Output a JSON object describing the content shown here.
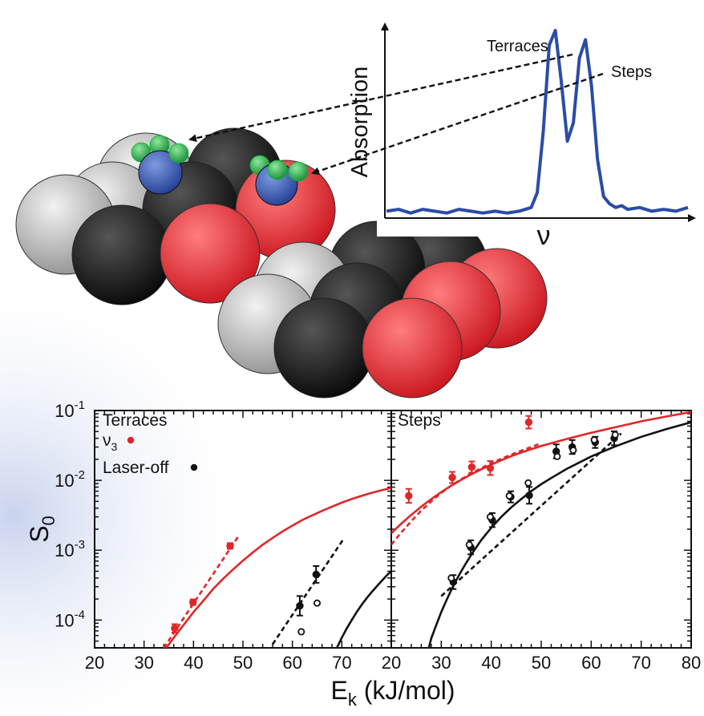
{
  "colors": {
    "red": "#e02727",
    "black": "#111111",
    "blue": "#2a4ca8",
    "gray": "#b8b8b8",
    "sphere_red": "#e8282e",
    "adsorbate_blue": "#3652a8",
    "adsorbate_green": "#2faa4a"
  },
  "inset": {
    "ylabel": "Absorption",
    "xlabel": "ν",
    "peak_labels": [
      "Terraces",
      "Steps"
    ],
    "spectrum": {
      "type": "line",
      "x": [
        0,
        4,
        8,
        12,
        16,
        20,
        24,
        28,
        32,
        36,
        40,
        44,
        48,
        50,
        52,
        54,
        56,
        58,
        60,
        62,
        64,
        66,
        68,
        70,
        72,
        74,
        76,
        78,
        80,
        84,
        88,
        92,
        96,
        100
      ],
      "y": [
        0.02,
        0.03,
        0.01,
        0.03,
        0.02,
        0.01,
        0.03,
        0.02,
        0.01,
        0.02,
        0.01,
        0.02,
        0.04,
        0.12,
        0.45,
        0.92,
        1.0,
        0.72,
        0.4,
        0.5,
        0.85,
        0.95,
        0.7,
        0.3,
        0.1,
        0.06,
        0.04,
        0.05,
        0.03,
        0.04,
        0.02,
        0.03,
        0.02,
        0.04
      ],
      "color": "blue"
    }
  },
  "chart_data": {
    "type": "scatter",
    "ylabel": "S",
    "ylabel_sub": "0",
    "xlabel": "E",
    "xlabel_sub": "k",
    "xlabel_units": " (kJ/mol)",
    "y_scale": "log",
    "ylim": [
      4e-05,
      0.1
    ],
    "ytick_labels": [
      {
        "value": 0.1,
        "base": "10",
        "exp": "-1"
      },
      {
        "value": 0.01,
        "base": "10",
        "exp": "-2"
      },
      {
        "value": 0.001,
        "base": "10",
        "exp": "-3"
      },
      {
        "value": 0.0001,
        "base": "10",
        "exp": "-4"
      }
    ],
    "panels": [
      {
        "title": "Terraces",
        "xlim": [
          20,
          80
        ],
        "xticks": [
          "20",
          "30",
          "40",
          "50",
          "60",
          "70"
        ],
        "xtick_values": [
          20,
          30,
          40,
          50,
          60,
          70
        ],
        "legend": [
          {
            "label_base": "ν",
            "label_sub": "3",
            "color": "red"
          },
          {
            "label_base": "Laser-off",
            "label_sub": "",
            "color": "black"
          }
        ],
        "series": [
          {
            "color": "red",
            "marker": "filled",
            "x": [
              36.2,
              39.9,
              47.4
            ],
            "y": [
              7.6e-05,
              0.00018,
              0.00115
            ],
            "err": [
              0.06,
              0.04,
              0.04
            ]
          },
          {
            "color": "black",
            "marker": "filled",
            "x": [
              61.5,
              64.8
            ],
            "y": [
              0.00016,
              0.00045
            ],
            "err": [
              0.14,
              0.12
            ]
          },
          {
            "color": "black",
            "marker": "open",
            "x": [
              61.8,
              65.0
            ],
            "y": [
              6.8e-05,
              0.000175
            ],
            "err": [
              0,
              0
            ]
          }
        ],
        "lines": [
          {
            "color": "red",
            "style": "solid",
            "x": [
              34.5,
              36,
              38,
              40,
              42,
              44,
              46,
              48,
              50,
              52,
              54,
              56,
              58,
              60,
              62,
              64,
              66,
              68,
              70,
              72,
              74,
              76,
              78,
              80
            ],
            "y": [
              4e-05,
              5.6e-05,
              8.5e-05,
              0.00013,
              0.00019,
              0.00028,
              0.00039,
              0.00053,
              0.00071,
              0.00093,
              0.0012,
              0.0015,
              0.00185,
              0.00225,
              0.0027,
              0.00315,
              0.00365,
              0.0042,
              0.0048,
              0.0054,
              0.006,
              0.0066,
              0.0072,
              0.0078
            ]
          },
          {
            "color": "red",
            "style": "dashed",
            "x": [
              34,
              49
            ],
            "y": [
              4e-05,
              0.00155
            ]
          },
          {
            "color": "black",
            "style": "dashed",
            "x": [
              56,
              70.5
            ],
            "y": [
              4.5e-05,
              0.0015
            ]
          },
          {
            "color": "black",
            "style": "solid",
            "x": [
              69,
              70,
              71,
              72,
              73,
              74,
              75,
              76,
              77,
              78,
              79,
              80
            ],
            "y": [
              4e-05,
              5.6e-05,
              7.6e-05,
              0.0001,
              0.00013,
              0.000165,
              0.000205,
              0.00025,
              0.0003,
              0.00036,
              0.00043,
              0.0005
            ]
          }
        ]
      },
      {
        "title": "Steps",
        "xlim": [
          20,
          80
        ],
        "xticks": [
          "20",
          "30",
          "40",
          "50",
          "60",
          "70",
          "80"
        ],
        "xtick_values": [
          20,
          30,
          40,
          50,
          60,
          70,
          80
        ],
        "legend": [],
        "series": [
          {
            "color": "red",
            "marker": "filled",
            "x": [
              23.5,
              32.2,
              36.1,
              39.8,
              47.5
            ],
            "y": [
              0.006,
              0.011,
              0.0155,
              0.015,
              0.068
            ],
            "err": [
              0.1,
              0.08,
              0.08,
              0.1,
              0.09
            ]
          },
          {
            "color": "black",
            "marker": "filled",
            "x": [
              32.4,
              35.9,
              40.2,
              43.9,
              47.6,
              53.0,
              56.2,
              60.8,
              64.6
            ],
            "y": [
              0.00035,
              0.0011,
              0.0027,
              0.0058,
              0.0061,
              0.026,
              0.03,
              0.035,
              0.04
            ],
            "err": [
              0.1,
              0.1,
              0.1,
              0.08,
              0.12,
              0.1,
              0.1,
              0.08,
              0.1
            ]
          },
          {
            "color": "black",
            "marker": "open",
            "x": [
              32.0,
              35.6,
              39.8,
              43.6,
              47.4,
              53.2,
              56.4,
              60.6,
              64.8
            ],
            "y": [
              0.0004,
              0.0012,
              0.003,
              0.006,
              0.0092,
              0.022,
              0.027,
              0.038,
              0.045
            ],
            "err": [
              0,
              0,
              0,
              0,
              0,
              0,
              0,
              0,
              0
            ]
          }
        ],
        "lines": [
          {
            "color": "red",
            "style": "solid",
            "x": [
              20,
              22,
              24,
              26,
              28,
              30,
              32,
              34,
              36,
              38,
              40,
              42,
              44,
              46,
              48,
              50,
              55,
              60,
              65,
              70,
              75,
              80
            ],
            "y": [
              0.00175,
              0.0024,
              0.0032,
              0.0042,
              0.0054,
              0.0068,
              0.0084,
              0.0102,
              0.0122,
              0.0144,
              0.0168,
              0.0194,
              0.0222,
              0.025,
              0.028,
              0.031,
              0.039,
              0.048,
              0.058,
              0.07,
              0.082,
              0.095
            ]
          },
          {
            "color": "red",
            "style": "dashed",
            "x": [
              20,
              22,
              24,
              26,
              28,
              30,
              32,
              34,
              36,
              38,
              40,
              42,
              44,
              46,
              48,
              50
            ],
            "y": [
              0.0012,
              0.0018,
              0.0026,
              0.0037,
              0.005,
              0.0066,
              0.0084,
              0.0104,
              0.0126,
              0.015,
              0.0176,
              0.0204,
              0.0234,
              0.0266,
              0.03,
              0.034
            ]
          },
          {
            "color": "black",
            "style": "solid",
            "x": [
              27.5,
              28,
              29,
              30,
              31,
              32,
              33,
              34,
              35,
              36,
              38,
              40,
              42,
              44,
              46,
              48,
              50,
              52,
              55,
              60,
              65,
              70,
              75,
              80
            ],
            "y": [
              4e-05,
              5.5e-05,
              8.5e-05,
              0.00013,
              0.00019,
              0.00027,
              0.00037,
              0.0005,
              0.00066,
              0.00086,
              0.0014,
              0.0021,
              0.003,
              0.0041,
              0.0054,
              0.007,
              0.0088,
              0.0108,
              0.0145,
              0.022,
              0.031,
              0.042,
              0.054,
              0.068
            ]
          },
          {
            "color": "black",
            "style": "dashed",
            "x": [
              30,
              66
            ],
            "y": [
              0.00022,
              0.047
            ]
          }
        ]
      }
    ]
  }
}
